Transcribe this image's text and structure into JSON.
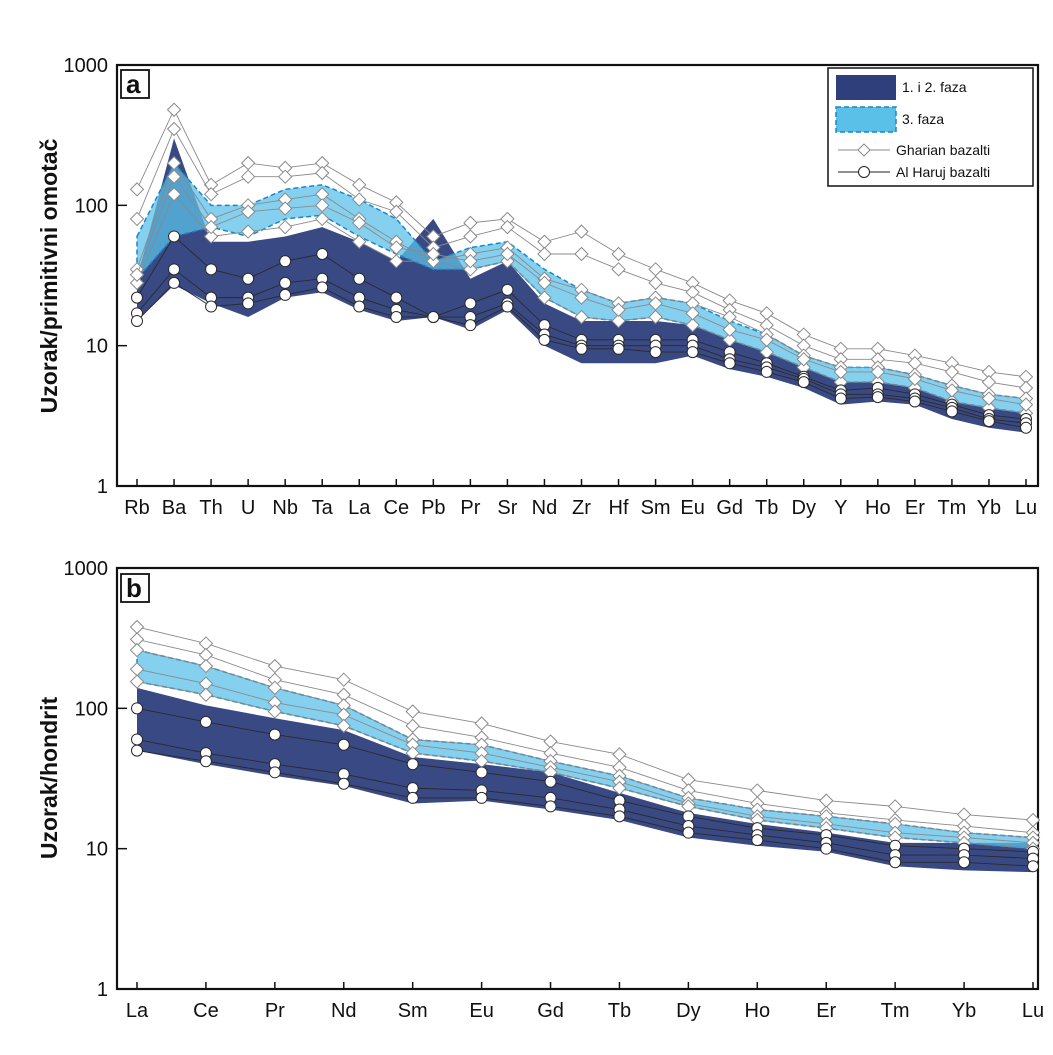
{
  "chart_data": [
    {
      "type": "line",
      "panel_label": "a",
      "ylabel": "Uzorak/primitivni omotač",
      "yscale": "log",
      "ylim": [
        1,
        1000
      ],
      "yticks": [
        "1",
        "10",
        "100",
        "1000"
      ],
      "categories": [
        "Rb",
        "Ba",
        "Th",
        "U",
        "Nb",
        "Ta",
        "La",
        "Ce",
        "Pb",
        "Pr",
        "Sr",
        "Nd",
        "Zr",
        "Hf",
        "Sm",
        "Eu",
        "Gd",
        "Tb",
        "Dy",
        "Y",
        "Ho",
        "Er",
        "Tm",
        "Yb",
        "Lu"
      ],
      "legend": {
        "placement": "top-right",
        "entries": [
          {
            "label": "1. i 2. faza",
            "kind": "fill",
            "color": "#2e3f7c"
          },
          {
            "label": "3. faza",
            "kind": "fill-dashed",
            "color": "#5bc0e8"
          },
          {
            "label": "Gharian bazalti",
            "kind": "diamond-line"
          },
          {
            "label": "Al Haruj bazalti",
            "kind": "circle-line"
          }
        ]
      },
      "bands": [
        {
          "name": "1. i 2. faza",
          "color": "#2e3f7c",
          "upper": [
            30,
            300,
            55,
            55,
            60,
            70,
            55,
            40,
            80,
            30,
            40,
            20,
            15,
            15,
            15,
            14,
            11,
            9,
            7,
            5.5,
            5.5,
            5,
            4,
            3.6,
            3.3
          ],
          "lower": [
            15,
            27,
            20,
            16,
            22,
            24,
            18,
            15,
            16,
            13,
            18,
            10,
            7.5,
            7.5,
            7.5,
            8.5,
            6.8,
            6,
            5,
            3.8,
            4,
            3.8,
            3,
            2.6,
            2.4
          ]
        },
        {
          "name": "3. faza",
          "color": "#5bc0e8",
          "upper": [
            60,
            200,
            100,
            100,
            130,
            140,
            110,
            80,
            40,
            50,
            55,
            35,
            25,
            20,
            22,
            20,
            15,
            12,
            8.5,
            7,
            7,
            6.2,
            5.2,
            4.5,
            4.2
          ],
          "lower": [
            30,
            60,
            70,
            60,
            80,
            85,
            60,
            45,
            35,
            35,
            40,
            22,
            16,
            15,
            16,
            14,
            11,
            9,
            7,
            5.5,
            5.5,
            5,
            4,
            3.6,
            3.3
          ]
        }
      ],
      "series": [
        {
          "marker": "diamond",
          "values": [
            130,
            480,
            140,
            200,
            185,
            200,
            140,
            105,
            60,
            75,
            80,
            55,
            65,
            45,
            35,
            28,
            21,
            17,
            12,
            9.5,
            9.5,
            8.5,
            7.5,
            6.5,
            6
          ]
        },
        {
          "marker": "diamond",
          "values": [
            80,
            350,
            120,
            160,
            160,
            170,
            110,
            90,
            50,
            60,
            70,
            45,
            45,
            35,
            28,
            24,
            18,
            14,
            10,
            8,
            8,
            7.5,
            6.5,
            5.5,
            5
          ]
        },
        {
          "marker": "diamond",
          "values": [
            35,
            200,
            80,
            100,
            110,
            120,
            80,
            55,
            40,
            45,
            50,
            30,
            25,
            20,
            22,
            20,
            16,
            12,
            8.5,
            7,
            7,
            6.2,
            5.2,
            4.5,
            4.2
          ]
        },
        {
          "marker": "diamond",
          "values": [
            28,
            120,
            60,
            65,
            70,
            80,
            55,
            40,
            40,
            35,
            40,
            22,
            16,
            15,
            16,
            14,
            11,
            9,
            7,
            5.5,
            5.5,
            5,
            4,
            3.6,
            3.3
          ]
        },
        {
          "marker": "diamond",
          "values": [
            32,
            160,
            70,
            90,
            95,
            100,
            75,
            50,
            45,
            40,
            45,
            28,
            22,
            18,
            20,
            17,
            13,
            11,
            8,
            6.5,
            6.5,
            5.8,
            4.8,
            4.2,
            3.8
          ]
        },
        {
          "marker": "circle",
          "values": [
            22,
            60,
            35,
            30,
            40,
            45,
            30,
            22,
            16,
            20,
            25,
            14,
            11,
            11,
            11,
            11,
            9,
            7.5,
            6,
            4.8,
            5,
            4.5,
            3.8,
            3.2,
            3
          ]
        },
        {
          "marker": "circle",
          "values": [
            17,
            35,
            22,
            22,
            28,
            30,
            22,
            18,
            16,
            16,
            20,
            12,
            10,
            10,
            10,
            10,
            8,
            7,
            5.8,
            4.5,
            4.5,
            4.2,
            3.6,
            3,
            2.8
          ]
        },
        {
          "marker": "circle",
          "values": [
            15,
            28,
            19,
            20,
            23,
            26,
            19,
            16,
            16,
            14,
            19,
            11,
            9.5,
            9.5,
            9,
            9,
            7.5,
            6.5,
            5.5,
            4.2,
            4.3,
            4,
            3.4,
            2.9,
            2.6
          ]
        }
      ]
    },
    {
      "type": "line",
      "panel_label": "b",
      "ylabel": "Uzorak/hondrit",
      "yscale": "log",
      "ylim": [
        1,
        1000
      ],
      "yticks": [
        "1",
        "10",
        "100",
        "1000"
      ],
      "categories": [
        "La",
        "Ce",
        "Pr",
        "Nd",
        "Sm",
        "Eu",
        "Gd",
        "Tb",
        "Dy",
        "Ho",
        "Er",
        "Tm",
        "Yb",
        "Lu"
      ],
      "bands": [
        {
          "name": "1. i 2. faza",
          "color": "#2e3f7c",
          "upper": [
            140,
            105,
            85,
            70,
            45,
            40,
            35,
            25,
            18,
            15,
            13,
            11,
            11,
            11
          ],
          "lower": [
            50,
            40,
            33,
            28,
            21,
            22,
            19,
            16,
            12,
            10.5,
            9.5,
            7.5,
            7,
            6.8
          ]
        },
        {
          "name": "3. faza",
          "color": "#5bc0e8",
          "upper": [
            260,
            200,
            140,
            105,
            60,
            55,
            42,
            33,
            23,
            19,
            17,
            15,
            13,
            12
          ],
          "lower": [
            155,
            125,
            95,
            75,
            48,
            42,
            35,
            27,
            20,
            16,
            14,
            12,
            11,
            10
          ]
        }
      ],
      "series": [
        {
          "marker": "diamond",
          "values": [
            380,
            290,
            200,
            160,
            95,
            78,
            58,
            47,
            31,
            26,
            22,
            20,
            17.5,
            16
          ]
        },
        {
          "marker": "diamond",
          "values": [
            310,
            240,
            160,
            125,
            75,
            62,
            48,
            38,
            26,
            21,
            18,
            16,
            14.5,
            13
          ]
        },
        {
          "marker": "diamond",
          "values": [
            260,
            200,
            140,
            105,
            60,
            55,
            42,
            33,
            23,
            19,
            17,
            15,
            13,
            12
          ]
        },
        {
          "marker": "diamond",
          "values": [
            190,
            150,
            110,
            90,
            55,
            48,
            38,
            30,
            21,
            17,
            15,
            13,
            12,
            11
          ]
        },
        {
          "marker": "diamond",
          "values": [
            155,
            125,
            95,
            75,
            48,
            42,
            35,
            27,
            20,
            16,
            14,
            12,
            11,
            10
          ]
        },
        {
          "marker": "circle",
          "values": [
            100,
            80,
            65,
            55,
            40,
            35,
            30,
            22,
            17,
            14,
            12.5,
            10.5,
            10,
            9.5
          ]
        },
        {
          "marker": "circle",
          "values": [
            60,
            48,
            40,
            34,
            27,
            26,
            23,
            19,
            14.5,
            12.5,
            11,
            9,
            9,
            8.5
          ]
        },
        {
          "marker": "circle",
          "values": [
            50,
            42,
            35,
            29,
            23,
            23,
            20,
            17,
            13,
            11.5,
            10,
            8,
            8,
            7.5
          ]
        }
      ]
    }
  ]
}
